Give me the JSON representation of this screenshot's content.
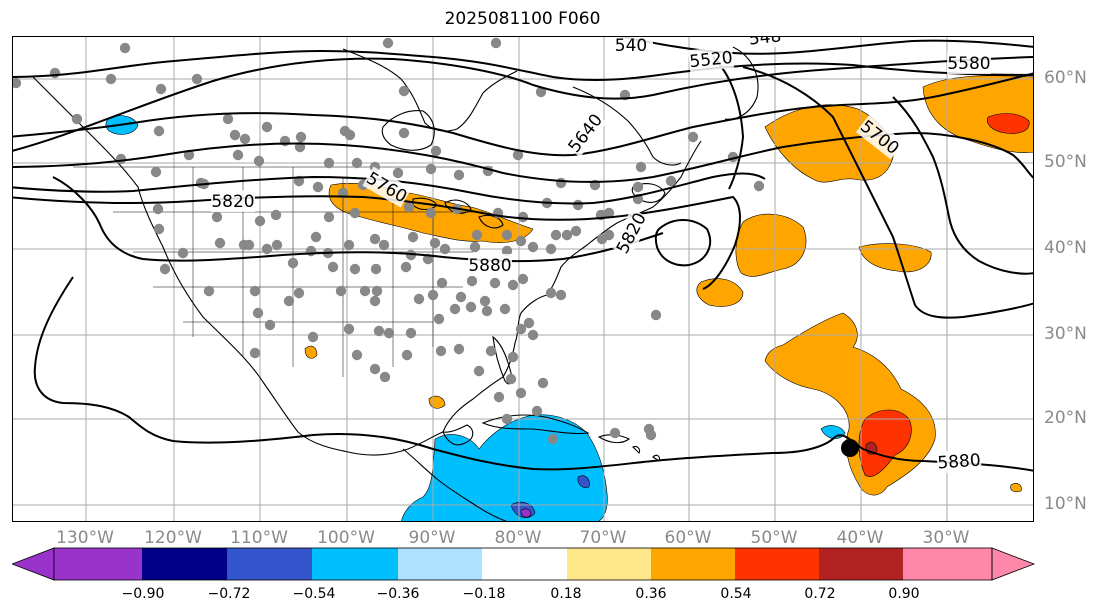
{
  "title": "2025081100 F060",
  "map": {
    "type": "contour-map",
    "projection": "lat-lon",
    "lon_range": [
      -140,
      -20
    ],
    "lat_range": [
      8,
      65
    ],
    "gridlines": true,
    "land_color": "#ffffff",
    "ocean_color": "#ffffff",
    "coastline_color": "#000000",
    "contour_color": "#000000",
    "station_marker_color": "#888888",
    "storm_marker_color": "#000000",
    "lon_labels": [
      "130°W",
      "120°W",
      "110°W",
      "100°W",
      "90°W",
      "80°W",
      "70°W",
      "60°W",
      "50°W",
      "40°W",
      "30°W"
    ],
    "lat_labels": [
      "60°N",
      "50°N",
      "40°N",
      "30°N",
      "20°N",
      "10°N"
    ],
    "contour_labels": [
      "540",
      "5520",
      "548",
      "5580",
      "5640",
      "5700",
      "5760",
      "5820",
      "5820",
      "5880",
      "5880"
    ]
  },
  "colorbar": {
    "ticks": [
      "−0.90",
      "−0.72",
      "−0.54",
      "−0.36",
      "−0.18",
      "0.18",
      "0.36",
      "0.54",
      "0.72",
      "0.90"
    ],
    "colors": [
      "#9933cc",
      "#000088",
      "#3355cc",
      "#00bfff",
      "#aee3ff",
      "#ffffff",
      "#ffe88a",
      "#ffa500",
      "#ff3300",
      "#b22222",
      "#ff88aa"
    ],
    "extend": "both"
  }
}
